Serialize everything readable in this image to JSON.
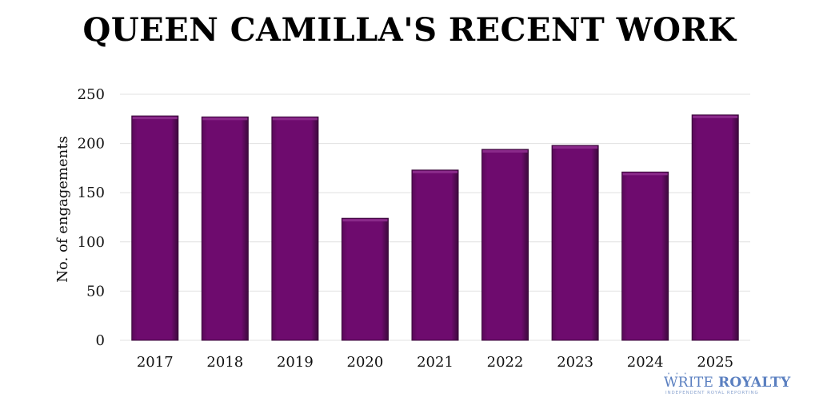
{
  "chart_data": {
    "type": "bar",
    "title": "QUEEN CAMILLA'S RECENT WORK",
    "xlabel": "",
    "ylabel": "No. of engagements",
    "categories": [
      "2017",
      "2018",
      "2019",
      "2020",
      "2021",
      "2022",
      "2023",
      "2024",
      "2025"
    ],
    "values": [
      228,
      227,
      227,
      124,
      173,
      194,
      198,
      171,
      229
    ],
    "ylim": [
      0,
      250
    ],
    "yticks": [
      0,
      50,
      100,
      150,
      200,
      250
    ],
    "grid": true,
    "bar_color": "#6a0a6a",
    "bar_edge_color": "#3a0a3a",
    "grid_color": "#e0e0e0"
  },
  "watermark": {
    "dots": "• • •",
    "text_regular": "WRITE ",
    "text_bold": "ROYALTY",
    "tagline": "INDEPENDENT ROYAL REPORTING"
  }
}
